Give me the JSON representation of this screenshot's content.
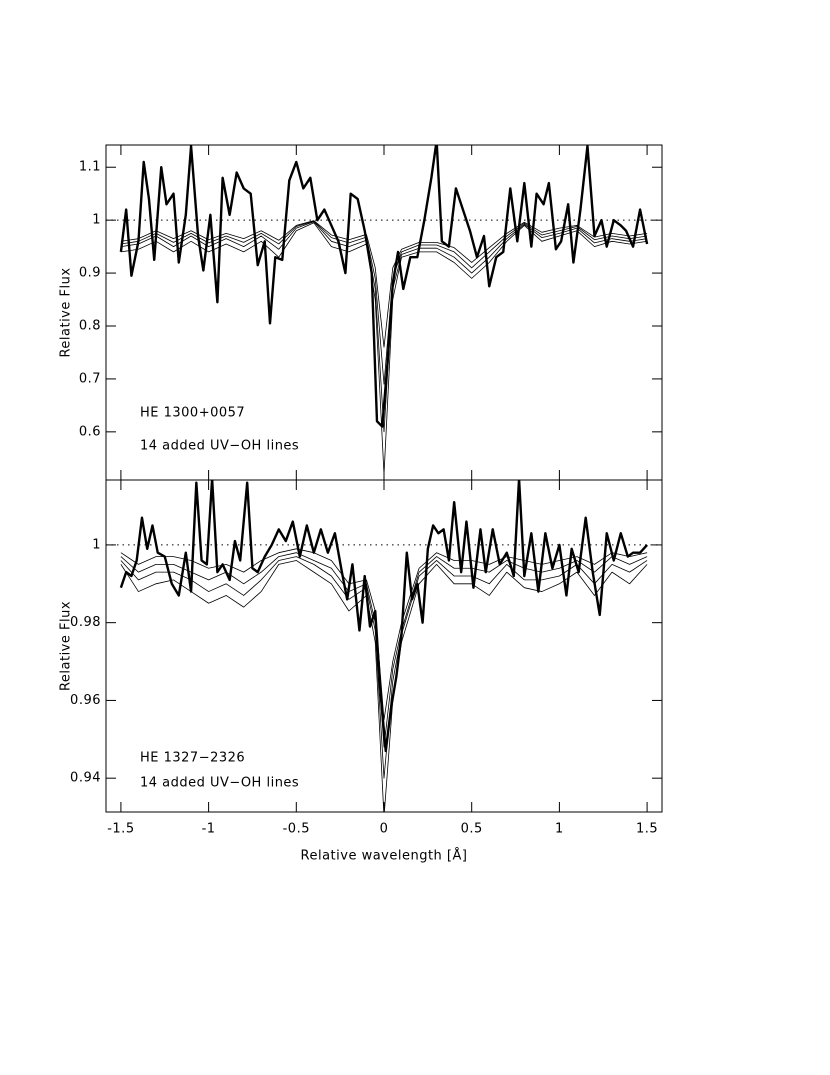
{
  "chart_data": [
    {
      "type": "line",
      "ylabel": "Relative Flux",
      "annotations": [
        "HE 1300+0057",
        "14 added UV−OH lines"
      ],
      "xlim": [
        -1.585,
        1.585
      ],
      "ylim": [
        0.509,
        1.142
      ],
      "xticks": [
        -1.5,
        -1,
        -0.5,
        0,
        0.5,
        1,
        1.5
      ],
      "xtick_labels": false,
      "yticks": [
        0.6,
        0.7,
        0.8,
        0.9,
        1,
        1.1
      ],
      "reference_line": 1,
      "series": [
        {
          "color": "#000000",
          "x": [
            -1.5,
            -1.47,
            -1.44,
            -1.4,
            -1.37,
            -1.34,
            -1.31,
            -1.27,
            -1.24,
            -1.2,
            -1.17,
            -1.13,
            -1.1,
            -1.06,
            -1.03,
            -0.99,
            -0.95,
            -0.92,
            -0.88,
            -0.84,
            -0.8,
            -0.76,
            -0.72,
            -0.68,
            -0.65,
            -0.62,
            -0.58,
            -0.54,
            -0.5,
            -0.46,
            -0.42,
            -0.38,
            -0.34,
            -0.3,
            -0.26,
            -0.22,
            -0.19,
            -0.15,
            -0.11,
            -0.07,
            -0.04,
            -0.01,
            0.02,
            0.05,
            0.08,
            0.11,
            0.15,
            0.19,
            0.23,
            0.27,
            0.3,
            0.33,
            0.37,
            0.41,
            0.45,
            0.49,
            0.53,
            0.57,
            0.6,
            0.64,
            0.68,
            0.72,
            0.76,
            0.8,
            0.84,
            0.87,
            0.91,
            0.94,
            0.98,
            1.01,
            1.05,
            1.08,
            1.12,
            1.16,
            1.2,
            1.24,
            1.27,
            1.31,
            1.35,
            1.38,
            1.42,
            1.46,
            1.5
          ],
          "values": [
            0.94,
            1.02,
            0.895,
            0.96,
            1.11,
            1.04,
            0.925,
            1.1,
            1.03,
            1.05,
            0.92,
            1.01,
            1.14,
            0.97,
            0.905,
            1.01,
            0.845,
            1.08,
            1.01,
            1.09,
            1.06,
            1.05,
            0.915,
            0.96,
            0.805,
            0.93,
            0.925,
            1.075,
            1.11,
            1.06,
            1.08,
            1.0,
            1.02,
            0.99,
            0.96,
            0.9,
            1.05,
            1.04,
            0.98,
            0.9,
            0.62,
            0.61,
            0.73,
            0.88,
            0.94,
            0.87,
            0.93,
            0.93,
            1.0,
            1.08,
            1.15,
            0.96,
            0.95,
            1.06,
            1.02,
            0.98,
            0.93,
            0.97,
            0.875,
            0.93,
            0.94,
            1.06,
            0.96,
            1.07,
            0.95,
            1.05,
            1.03,
            1.07,
            0.945,
            0.96,
            1.03,
            0.92,
            1.02,
            1.14,
            0.97,
            1.0,
            0.95,
            1.0,
            0.99,
            0.98,
            0.95,
            1.02,
            0.955
          ]
        },
        {
          "color": "#000000",
          "x": [
            -1.5,
            -1.4,
            -1.3,
            -1.2,
            -1.1,
            -1.0,
            -0.9,
            -0.8,
            -0.7,
            -0.6,
            -0.5,
            -0.4,
            -0.3,
            -0.2,
            -0.1,
            -0.05,
            0,
            0.05,
            0.1,
            0.2,
            0.3,
            0.4,
            0.5,
            0.6,
            0.7,
            0.8,
            0.9,
            1.0,
            1.1,
            1.2,
            1.3,
            1.4,
            1.5
          ],
          "values": [
            0.96,
            0.965,
            0.98,
            0.965,
            0.98,
            0.963,
            0.975,
            0.965,
            0.98,
            0.962,
            0.99,
            0.999,
            0.972,
            0.963,
            0.973,
            0.91,
            0.76,
            0.91,
            0.945,
            0.958,
            0.958,
            0.948,
            0.92,
            0.948,
            0.975,
            0.996,
            0.977,
            0.985,
            0.99,
            0.968,
            0.975,
            0.97,
            0.975
          ]
        },
        {
          "color": "#000000",
          "x": [
            -1.5,
            -1.4,
            -1.3,
            -1.2,
            -1.1,
            -1.0,
            -0.9,
            -0.8,
            -0.7,
            -0.6,
            -0.5,
            -0.4,
            -0.3,
            -0.2,
            -0.1,
            -0.05,
            0,
            0.05,
            0.1,
            0.2,
            0.3,
            0.4,
            0.5,
            0.6,
            0.7,
            0.8,
            0.9,
            1.0,
            1.1,
            1.2,
            1.3,
            1.4,
            1.5
          ],
          "values": [
            0.955,
            0.96,
            0.975,
            0.958,
            0.975,
            0.957,
            0.97,
            0.958,
            0.975,
            0.955,
            0.988,
            0.998,
            0.967,
            0.957,
            0.968,
            0.89,
            0.69,
            0.89,
            0.94,
            0.953,
            0.953,
            0.94,
            0.91,
            0.94,
            0.97,
            0.994,
            0.972,
            0.98,
            0.988,
            0.963,
            0.97,
            0.965,
            0.97
          ]
        },
        {
          "color": "#000000",
          "x": [
            -1.5,
            -1.4,
            -1.3,
            -1.2,
            -1.1,
            -1.0,
            -0.9,
            -0.8,
            -0.7,
            -0.6,
            -0.5,
            -0.4,
            -0.3,
            -0.2,
            -0.1,
            -0.05,
            0,
            0.05,
            0.1,
            0.2,
            0.3,
            0.4,
            0.5,
            0.6,
            0.7,
            0.8,
            0.9,
            1.0,
            1.1,
            1.2,
            1.3,
            1.4,
            1.5
          ],
          "values": [
            0.95,
            0.955,
            0.97,
            0.95,
            0.97,
            0.95,
            0.965,
            0.95,
            0.97,
            0.945,
            0.985,
            0.997,
            0.96,
            0.95,
            0.962,
            0.87,
            0.6,
            0.87,
            0.935,
            0.947,
            0.947,
            0.93,
            0.9,
            0.93,
            0.965,
            0.992,
            0.967,
            0.975,
            0.985,
            0.957,
            0.965,
            0.96,
            0.965
          ]
        },
        {
          "color": "#000000",
          "x": [
            -1.5,
            -1.4,
            -1.3,
            -1.2,
            -1.1,
            -1.0,
            -0.9,
            -0.8,
            -0.7,
            -0.6,
            -0.5,
            -0.4,
            -0.3,
            -0.2,
            -0.1,
            -0.05,
            0,
            0.05,
            0.1,
            0.2,
            0.3,
            0.4,
            0.5,
            0.6,
            0.7,
            0.8,
            0.9,
            1.0,
            1.1,
            1.2,
            1.3,
            1.4,
            1.5
          ],
          "values": [
            0.94,
            0.945,
            0.96,
            0.94,
            0.96,
            0.94,
            0.955,
            0.94,
            0.96,
            0.93,
            0.98,
            0.995,
            0.95,
            0.94,
            0.955,
            0.85,
            0.52,
            0.85,
            0.93,
            0.94,
            0.94,
            0.92,
            0.89,
            0.92,
            0.96,
            0.99,
            0.96,
            0.97,
            0.98,
            0.95,
            0.96,
            0.955,
            0.96
          ]
        }
      ]
    },
    {
      "type": "line",
      "ylabel": "Relative Flux",
      "xlabel": "Relative wavelength [Å]",
      "annotations": [
        "HE 1327−2326",
        "14 added UV−OH lines"
      ],
      "xlim": [
        -1.585,
        1.585
      ],
      "ylim": [
        0.9313,
        1.0167
      ],
      "xticks": [
        -1.5,
        -1,
        -0.5,
        0,
        0.5,
        1,
        1.5
      ],
      "xtick_labels": true,
      "yticks": [
        0.94,
        0.96,
        0.98,
        1
      ],
      "reference_line": 1,
      "series": [
        {
          "color": "#000000",
          "x": [
            -1.5,
            -1.47,
            -1.44,
            -1.41,
            -1.38,
            -1.35,
            -1.32,
            -1.29,
            -1.25,
            -1.21,
            -1.17,
            -1.13,
            -1.1,
            -1.07,
            -1.04,
            -1.01,
            -0.98,
            -0.95,
            -0.92,
            -0.88,
            -0.85,
            -0.82,
            -0.78,
            -0.75,
            -0.72,
            -0.68,
            -0.64,
            -0.6,
            -0.56,
            -0.52,
            -0.48,
            -0.44,
            -0.4,
            -0.36,
            -0.32,
            -0.28,
            -0.24,
            -0.21,
            -0.18,
            -0.14,
            -0.11,
            -0.08,
            -0.05,
            -0.02,
            0.01,
            0.04,
            0.07,
            0.1,
            0.13,
            0.16,
            0.19,
            0.22,
            0.25,
            0.28,
            0.31,
            0.34,
            0.37,
            0.4,
            0.44,
            0.47,
            0.51,
            0.55,
            0.58,
            0.62,
            0.66,
            0.7,
            0.74,
            0.77,
            0.8,
            0.84,
            0.88,
            0.92,
            0.96,
            1.0,
            1.04,
            1.07,
            1.11,
            1.15,
            1.19,
            1.23,
            1.27,
            1.31,
            1.35,
            1.39,
            1.42,
            1.46,
            1.5
          ],
          "values": [
            0.989,
            0.993,
            0.992,
            0.996,
            1.007,
            0.999,
            1.005,
            0.998,
            0.997,
            0.99,
            0.987,
            0.998,
            0.988,
            1.016,
            0.996,
            0.995,
            1.017,
            0.993,
            0.995,
            0.991,
            1.001,
            0.996,
            1.016,
            0.994,
            0.993,
            0.997,
            1.0,
            1.004,
            1.001,
            1.006,
            0.997,
            1.005,
            0.998,
            1.004,
            0.998,
            1.003,
            0.993,
            0.986,
            0.995,
            0.978,
            0.992,
            0.979,
            0.983,
            0.962,
            0.947,
            0.958,
            0.966,
            0.977,
            0.998,
            0.986,
            0.99,
            0.98,
            0.999,
            1.005,
            1.003,
            1.004,
            0.996,
            1.011,
            0.993,
            1.006,
            0.989,
            1.004,
            0.993,
            1.004,
            0.995,
            0.998,
            0.992,
            1.017,
            0.992,
            1.003,
            0.988,
            1.003,
            0.994,
            1.0,
            0.987,
            0.999,
            0.993,
            1.007,
            0.993,
            0.982,
            1.003,
            0.996,
            1.003,
            0.997,
            0.998,
            0.998,
            1.0
          ]
        },
        {
          "color": "#000000",
          "x": [
            -1.5,
            -1.4,
            -1.3,
            -1.2,
            -1.1,
            -1.0,
            -0.9,
            -0.8,
            -0.7,
            -0.6,
            -0.5,
            -0.4,
            -0.3,
            -0.2,
            -0.1,
            -0.05,
            0,
            0.05,
            0.1,
            0.2,
            0.3,
            0.4,
            0.5,
            0.6,
            0.7,
            0.8,
            0.9,
            1.0,
            1.1,
            1.2,
            1.3,
            1.4,
            1.5
          ],
          "values": [
            0.998,
            0.995,
            0.997,
            0.997,
            0.996,
            0.994,
            0.995,
            0.993,
            0.996,
            0.998,
            0.999,
            0.998,
            0.996,
            0.99,
            0.991,
            0.983,
            0.955,
            0.97,
            0.98,
            0.994,
            0.998,
            0.996,
            0.996,
            0.995,
            0.997,
            0.996,
            0.995,
            0.996,
            0.997,
            0.995,
            0.998,
            0.997,
            0.998
          ]
        },
        {
          "color": "#000000",
          "x": [
            -1.5,
            -1.4,
            -1.3,
            -1.2,
            -1.1,
            -1.0,
            -0.9,
            -0.8,
            -0.7,
            -0.6,
            -0.5,
            -0.4,
            -0.3,
            -0.2,
            -0.1,
            -0.05,
            0,
            0.05,
            0.1,
            0.2,
            0.3,
            0.4,
            0.5,
            0.6,
            0.7,
            0.8,
            0.9,
            1.0,
            1.1,
            1.2,
            1.3,
            1.4,
            1.5
          ],
          "values": [
            0.997,
            0.993,
            0.995,
            0.995,
            0.993,
            0.991,
            0.993,
            0.99,
            0.993,
            0.997,
            0.998,
            0.996,
            0.994,
            0.988,
            0.99,
            0.98,
            0.948,
            0.968,
            0.978,
            0.993,
            0.997,
            0.994,
            0.994,
            0.993,
            0.996,
            0.994,
            0.993,
            0.994,
            0.996,
            0.993,
            0.997,
            0.995,
            0.997
          ]
        },
        {
          "color": "#000000",
          "x": [
            -1.5,
            -1.4,
            -1.3,
            -1.2,
            -1.1,
            -1.0,
            -0.9,
            -0.8,
            -0.7,
            -0.6,
            -0.5,
            -0.4,
            -0.3,
            -0.2,
            -0.1,
            -0.05,
            0,
            0.05,
            0.1,
            0.2,
            0.3,
            0.4,
            0.5,
            0.6,
            0.7,
            0.8,
            0.9,
            1.0,
            1.1,
            1.2,
            1.3,
            1.4,
            1.5
          ],
          "values": [
            0.996,
            0.991,
            0.993,
            0.993,
            0.991,
            0.988,
            0.99,
            0.987,
            0.991,
            0.996,
            0.997,
            0.995,
            0.992,
            0.986,
            0.989,
            0.978,
            0.94,
            0.965,
            0.977,
            0.992,
            0.996,
            0.992,
            0.992,
            0.99,
            0.995,
            0.991,
            0.991,
            0.992,
            0.995,
            0.99,
            0.995,
            0.993,
            0.996
          ]
        },
        {
          "color": "#000000",
          "x": [
            -1.5,
            -1.4,
            -1.3,
            -1.2,
            -1.1,
            -1.0,
            -0.9,
            -0.8,
            -0.7,
            -0.6,
            -0.5,
            -0.4,
            -0.3,
            -0.2,
            -0.1,
            -0.05,
            0,
            0.05,
            0.1,
            0.2,
            0.3,
            0.4,
            0.5,
            0.6,
            0.7,
            0.8,
            0.9,
            1.0,
            1.1,
            1.2,
            1.3,
            1.4,
            1.5
          ],
          "values": [
            0.995,
            0.988,
            0.99,
            0.991,
            0.988,
            0.985,
            0.987,
            0.984,
            0.988,
            0.995,
            0.996,
            0.993,
            0.99,
            0.983,
            0.987,
            0.975,
            0.93,
            0.96,
            0.975,
            0.99,
            0.995,
            0.99,
            0.99,
            0.987,
            0.993,
            0.989,
            0.988,
            0.99,
            0.993,
            0.987,
            0.993,
            0.99,
            0.995
          ]
        }
      ]
    }
  ]
}
